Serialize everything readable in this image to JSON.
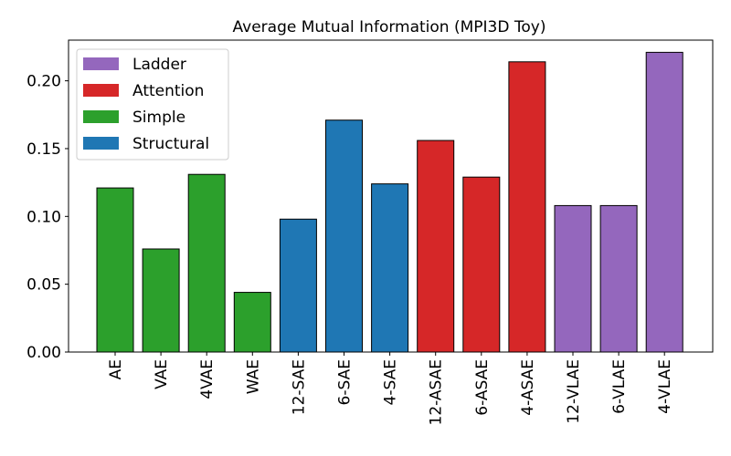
{
  "chart_data": {
    "type": "bar",
    "title": "Average Mutual Information (MPI3D Toy)",
    "xlabel": "",
    "ylabel": "",
    "ylim": [
      0,
      0.23
    ],
    "yticks": [
      0.0,
      0.05,
      0.1,
      0.15,
      0.2
    ],
    "ytick_labels": [
      "0.00",
      "0.05",
      "0.10",
      "0.15",
      "0.20"
    ],
    "grid": false,
    "legend_position": "top-left",
    "categories": [
      "AE",
      "VAE",
      "4VAE",
      "WAE",
      "12-SAE",
      "6-SAE",
      "4-SAE",
      "12-ASAE",
      "6-ASAE",
      "4-ASAE",
      "12-VLAE",
      "6-VLAE",
      "4-VLAE"
    ],
    "values": [
      0.121,
      0.076,
      0.131,
      0.044,
      0.098,
      0.171,
      0.124,
      0.156,
      0.129,
      0.214,
      0.108,
      0.108,
      0.221
    ],
    "groups": [
      "Simple",
      "Simple",
      "Simple",
      "Simple",
      "Structural",
      "Structural",
      "Structural",
      "Attention",
      "Attention",
      "Attention",
      "Ladder",
      "Ladder",
      "Ladder"
    ],
    "series": [
      {
        "name": "Ladder",
        "color": "#9467bd"
      },
      {
        "name": "Attention",
        "color": "#d62728"
      },
      {
        "name": "Simple",
        "color": "#2ca02c"
      },
      {
        "name": "Structural",
        "color": "#1f77b4"
      }
    ]
  }
}
